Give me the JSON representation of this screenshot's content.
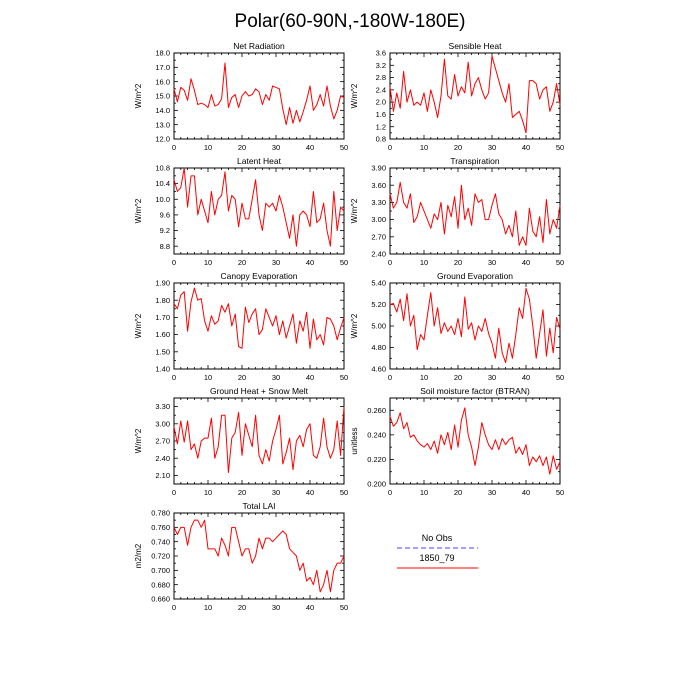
{
  "title": "Polar(60-90N,-180W-180E)",
  "colors": {
    "model": "#ff0000",
    "obs": "#8080ff"
  },
  "legend": {
    "entries": [
      {
        "label": "No Obs",
        "color": "#8080ff",
        "style": "dashed"
      },
      {
        "label": "1850_79",
        "color": "#ff0000",
        "style": "solid"
      }
    ]
  },
  "chart_data": [
    {
      "type": "line",
      "title": "Net Radiation",
      "ylabel": "W/m^2",
      "xlim": [
        0,
        50
      ],
      "ylim": [
        12.0,
        18.0
      ],
      "xticks": [
        0,
        10,
        20,
        30,
        40,
        50
      ],
      "yticks": [
        "12.0",
        "13.0",
        "14.0",
        "15.0",
        "16.0",
        "17.0",
        "18.0"
      ],
      "series": [
        {
          "name": "1850_79",
          "color": "#ff0000",
          "y": [
            15.5,
            14.6,
            15.6,
            15.4,
            14.7,
            16.2,
            15.4,
            14.4,
            14.5,
            14.4,
            14.2,
            15.1,
            14.3,
            14.4,
            14.8,
            17.3,
            14.2,
            14.9,
            15.1,
            14.2,
            15.0,
            15.3,
            15.0,
            15.1,
            15.5,
            15.3,
            14.4,
            15.1,
            14.7,
            15.7,
            15.6,
            15.5,
            14.1,
            13.0,
            14.2,
            13.1,
            14.0,
            13.2,
            13.9,
            14.7,
            15.7,
            14.0,
            14.4,
            15.1,
            14.3,
            15.7,
            14.3,
            13.4,
            14.0,
            15.0,
            14.9
          ]
        }
      ]
    },
    {
      "type": "line",
      "title": "Sensible Heat",
      "ylabel": "W/m^2",
      "xlim": [
        0,
        50
      ],
      "ylim": [
        0.8,
        3.6
      ],
      "xticks": [
        0,
        10,
        20,
        30,
        40,
        50
      ],
      "yticks": [
        "0.8",
        "1.2",
        "1.6",
        "2.0",
        "2.4",
        "2.8",
        "3.2",
        "3.6"
      ],
      "series": [
        {
          "name": "1850_79",
          "color": "#ff0000",
          "y": [
            2.5,
            1.7,
            2.3,
            1.8,
            3.0,
            2.0,
            2.4,
            1.9,
            2.0,
            1.9,
            2.3,
            1.7,
            2.4,
            2.0,
            1.5,
            2.2,
            3.4,
            2.2,
            2.1,
            2.9,
            2.2,
            2.5,
            2.3,
            3.3,
            2.2,
            2.6,
            2.8,
            2.4,
            2.1,
            2.3,
            3.5,
            3.1,
            2.7,
            2.3,
            2.0,
            2.6,
            1.5,
            1.6,
            1.7,
            1.4,
            1.0,
            2.7,
            2.7,
            2.6,
            2.1,
            2.4,
            2.5,
            1.7,
            2.0,
            2.6,
            1.9
          ]
        }
      ]
    },
    {
      "type": "line",
      "title": "Latent Heat",
      "ylabel": "W/m^2",
      "xlim": [
        0,
        50
      ],
      "ylim": [
        8.6,
        10.8
      ],
      "xticks": [
        0,
        10,
        20,
        30,
        40,
        50
      ],
      "yticks": [
        "8.8",
        "9.2",
        "9.6",
        "10.0",
        "10.4",
        "10.8"
      ],
      "series": [
        {
          "name": "1850_79",
          "color": "#ff0000",
          "y": [
            10.5,
            10.2,
            10.3,
            10.8,
            9.8,
            10.6,
            10.6,
            9.6,
            10.0,
            9.7,
            9.4,
            10.2,
            9.6,
            10.0,
            10.1,
            10.7,
            9.7,
            10.1,
            10.0,
            9.3,
            9.9,
            9.5,
            9.5,
            10.0,
            10.5,
            9.6,
            9.2,
            9.9,
            9.8,
            9.9,
            9.7,
            10.1,
            9.8,
            9.4,
            9.0,
            9.6,
            8.8,
            9.6,
            9.7,
            9.6,
            9.3,
            10.2,
            9.4,
            9.5,
            9.9,
            9.2,
            8.8,
            10.2,
            9.2,
            9.8,
            9.7
          ]
        }
      ]
    },
    {
      "type": "line",
      "title": "Transpiration",
      "ylabel": "W/m^2",
      "xlim": [
        0,
        50
      ],
      "ylim": [
        2.4,
        3.9
      ],
      "xticks": [
        0,
        10,
        20,
        30,
        40,
        50
      ],
      "yticks": [
        "2.40",
        "2.70",
        "3.00",
        "3.30",
        "3.60",
        "3.90"
      ],
      "series": [
        {
          "name": "1850_79",
          "color": "#ff0000",
          "y": [
            3.45,
            3.2,
            3.3,
            3.65,
            3.3,
            3.2,
            3.45,
            2.95,
            3.05,
            3.3,
            3.15,
            3.0,
            2.85,
            3.1,
            3.0,
            3.3,
            2.75,
            3.25,
            3.05,
            3.4,
            2.85,
            3.6,
            3.0,
            3.2,
            2.9,
            3.45,
            3.3,
            3.35,
            3.0,
            3.0,
            3.25,
            3.45,
            3.1,
            3.0,
            2.75,
            2.9,
            2.7,
            3.15,
            2.55,
            2.7,
            2.55,
            3.2,
            2.8,
            2.7,
            3.05,
            2.6,
            3.35,
            2.75,
            3.0,
            2.85,
            3.25
          ]
        }
      ]
    },
    {
      "type": "line",
      "title": "Canopy Evaporation",
      "ylabel": "W/m^2",
      "xlim": [
        0,
        50
      ],
      "ylim": [
        1.4,
        1.9
      ],
      "xticks": [
        0,
        10,
        20,
        30,
        40,
        50
      ],
      "yticks": [
        "1.40",
        "1.50",
        "1.60",
        "1.70",
        "1.80",
        "1.90"
      ],
      "series": [
        {
          "name": "1850_79",
          "color": "#ff0000",
          "y": [
            1.78,
            1.75,
            1.83,
            1.85,
            1.62,
            1.79,
            1.87,
            1.8,
            1.81,
            1.68,
            1.62,
            1.71,
            1.66,
            1.68,
            1.77,
            1.73,
            1.78,
            1.65,
            1.72,
            1.53,
            1.52,
            1.76,
            1.67,
            1.72,
            1.75,
            1.6,
            1.63,
            1.75,
            1.7,
            1.65,
            1.71,
            1.6,
            1.68,
            1.58,
            1.65,
            1.72,
            1.55,
            1.68,
            1.62,
            1.73,
            1.52,
            1.69,
            1.57,
            1.6,
            1.54,
            1.7,
            1.69,
            1.65,
            1.57,
            1.64,
            1.7
          ]
        }
      ]
    },
    {
      "type": "line",
      "title": "Ground Evaporation",
      "ylabel": "W/m^2",
      "xlim": [
        0,
        50
      ],
      "ylim": [
        4.6,
        5.4
      ],
      "xticks": [
        0,
        10,
        20,
        30,
        40,
        50
      ],
      "yticks": [
        "4.60",
        "4.80",
        "5.00",
        "5.20",
        "5.40"
      ],
      "series": [
        {
          "name": "1850_79",
          "color": "#ff0000",
          "y": [
            5.2,
            5.21,
            5.13,
            5.25,
            5.05,
            5.3,
            5.0,
            5.1,
            4.78,
            4.92,
            4.87,
            5.1,
            5.31,
            5.0,
            5.17,
            4.93,
            5.03,
            4.95,
            5.0,
            4.92,
            5.07,
            4.9,
            5.27,
            4.97,
            5.03,
            4.87,
            5.0,
            4.95,
            5.07,
            4.93,
            4.84,
            4.7,
            4.98,
            4.75,
            4.66,
            4.84,
            4.7,
            4.92,
            5.17,
            5.07,
            5.35,
            5.25,
            5.0,
            4.7,
            4.93,
            5.15,
            4.72,
            4.98,
            4.75,
            5.08,
            4.97
          ]
        }
      ]
    },
    {
      "type": "line",
      "title": "Ground Heat + Snow Melt",
      "ylabel": "W/m^2",
      "xlim": [
        0,
        50
      ],
      "ylim": [
        1.95,
        3.45
      ],
      "xticks": [
        0,
        10,
        20,
        30,
        40,
        50
      ],
      "yticks": [
        "2.10",
        "2.40",
        "2.70",
        "3.00",
        "3.30"
      ],
      "series": [
        {
          "name": "1850_79",
          "color": "#ff0000",
          "y": [
            2.95,
            2.65,
            3.05,
            2.68,
            3.05,
            2.55,
            2.65,
            2.4,
            2.7,
            2.75,
            2.75,
            3.1,
            2.4,
            2.6,
            3.15,
            3.15,
            2.15,
            2.75,
            2.85,
            3.2,
            2.45,
            3.0,
            2.8,
            2.6,
            3.15,
            2.45,
            2.3,
            2.55,
            2.35,
            2.7,
            2.9,
            3.15,
            2.3,
            2.5,
            2.75,
            2.2,
            2.7,
            2.8,
            2.6,
            2.9,
            3.0,
            2.45,
            2.4,
            2.6,
            3.1,
            2.6,
            2.4,
            2.55,
            3.05,
            2.45,
            3.3
          ]
        }
      ]
    },
    {
      "type": "line",
      "title": "Soil moisture factor (BTRAN)",
      "ylabel": "unitless",
      "xlim": [
        0,
        50
      ],
      "ylim": [
        0.2,
        0.27
      ],
      "xticks": [
        0,
        10,
        20,
        30,
        40,
        50
      ],
      "yticks": [
        "0.200",
        "0.220",
        "0.240",
        "0.260"
      ],
      "series": [
        {
          "name": "1850_79",
          "color": "#ff0000",
          "y": [
            0.255,
            0.247,
            0.25,
            0.258,
            0.245,
            0.25,
            0.238,
            0.24,
            0.235,
            0.232,
            0.23,
            0.233,
            0.228,
            0.235,
            0.225,
            0.24,
            0.232,
            0.242,
            0.228,
            0.248,
            0.23,
            0.252,
            0.262,
            0.24,
            0.23,
            0.215,
            0.23,
            0.25,
            0.24,
            0.232,
            0.228,
            0.236,
            0.228,
            0.237,
            0.232,
            0.236,
            0.238,
            0.225,
            0.23,
            0.224,
            0.232,
            0.215,
            0.222,
            0.218,
            0.223,
            0.215,
            0.222,
            0.208,
            0.223,
            0.212,
            0.218
          ]
        }
      ]
    },
    {
      "type": "line",
      "title": "Total LAI",
      "ylabel": "m2/m2",
      "xlim": [
        0,
        50
      ],
      "ylim": [
        0.66,
        0.78
      ],
      "xticks": [
        0,
        10,
        20,
        30,
        40,
        50
      ],
      "yticks": [
        "0.660",
        "0.680",
        "0.700",
        "0.720",
        "0.740",
        "0.760",
        "0.780"
      ],
      "series": [
        {
          "name": "1850_79",
          "color": "#ff0000",
          "y": [
            0.76,
            0.75,
            0.76,
            0.76,
            0.735,
            0.76,
            0.77,
            0.77,
            0.76,
            0.77,
            0.73,
            0.73,
            0.73,
            0.72,
            0.745,
            0.735,
            0.72,
            0.76,
            0.76,
            0.74,
            0.72,
            0.73,
            0.73,
            0.71,
            0.72,
            0.745,
            0.73,
            0.745,
            0.745,
            0.74,
            0.745,
            0.75,
            0.755,
            0.75,
            0.73,
            0.725,
            0.72,
            0.7,
            0.71,
            0.685,
            0.69,
            0.68,
            0.7,
            0.67,
            0.68,
            0.7,
            0.67,
            0.7,
            0.71,
            0.71,
            0.72
          ]
        }
      ]
    }
  ]
}
